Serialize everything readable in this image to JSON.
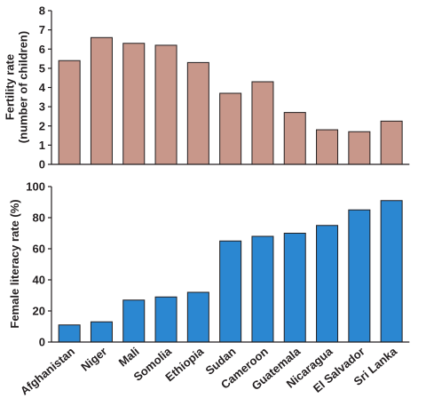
{
  "chart_data": [
    {
      "type": "bar",
      "title": "",
      "xlabel": "",
      "ylabel": [
        "Fertility rate",
        "(number of children)"
      ],
      "categories": [
        "Afghanistan",
        "Niger",
        "Mali",
        "Somolia",
        "Ethiopia",
        "Sudan",
        "Cameroon",
        "Guatemala",
        "Nicaragua",
        "El Salvador",
        "Sri Lanka"
      ],
      "values": [
        5.4,
        6.6,
        6.3,
        6.2,
        5.3,
        3.7,
        4.3,
        2.7,
        1.8,
        1.7,
        2.25
      ],
      "ylim": [
        0,
        8
      ],
      "yticks": [
        "0",
        "1",
        "2",
        "3",
        "4",
        "5",
        "6",
        "7",
        "8"
      ],
      "bar_color": "#c8978a",
      "grid": false
    },
    {
      "type": "bar",
      "title": "",
      "xlabel": "",
      "ylabel": [
        "Female literacy rate (%)"
      ],
      "categories": [
        "Afghanistan",
        "Niger",
        "Mali",
        "Somolia",
        "Ethiopia",
        "Sudan",
        "Cameroon",
        "Guatemala",
        "Nicaragua",
        "El Salvador",
        "Sri Lanka"
      ],
      "values": [
        11,
        13,
        27,
        29,
        32,
        65,
        68,
        70,
        75,
        85,
        91
      ],
      "ylim": [
        0,
        100
      ],
      "yticks": [
        "0",
        "20",
        "40",
        "60",
        "80",
        "100"
      ],
      "bar_color": "#2b87d1",
      "grid": false
    }
  ]
}
